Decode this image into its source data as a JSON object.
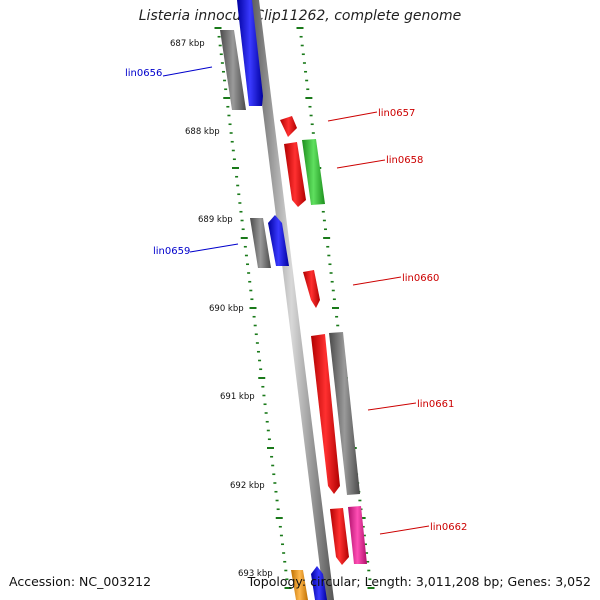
{
  "title": "Listeria innocua Clip11262, complete genome",
  "footer": {
    "accession": "Accession: NC_003212",
    "stats": "Topology: circular; Length: 3,011,208 bp; Genes: 3,052"
  },
  "colors": {
    "backbone": "#7a7a7a",
    "tick": "#1a7a1a",
    "gray_feature": "#6e6e6e",
    "blue_feature": "#0000ee",
    "red_feature": "#ff0000",
    "green_feature": "#33cc33",
    "pink_feature": "#ff1493",
    "orange_feature": "#ff9900",
    "label_blue": "#0000cc",
    "label_red": "#cc0000"
  },
  "kbp_marks": [
    "687 kbp",
    "688 kbp",
    "689 kbp",
    "690 kbp",
    "691 kbp",
    "692 kbp",
    "693 kbp"
  ],
  "loci": [
    {
      "name": "lin0656",
      "color": "label_blue"
    },
    {
      "name": "lin0657",
      "color": "label_red"
    },
    {
      "name": "lin0658",
      "color": "label_red"
    },
    {
      "name": "lin0659",
      "color": "label_blue"
    },
    {
      "name": "lin0660",
      "color": "label_red"
    },
    {
      "name": "lin0661",
      "color": "label_red"
    },
    {
      "name": "lin0662",
      "color": "label_red"
    }
  ]
}
